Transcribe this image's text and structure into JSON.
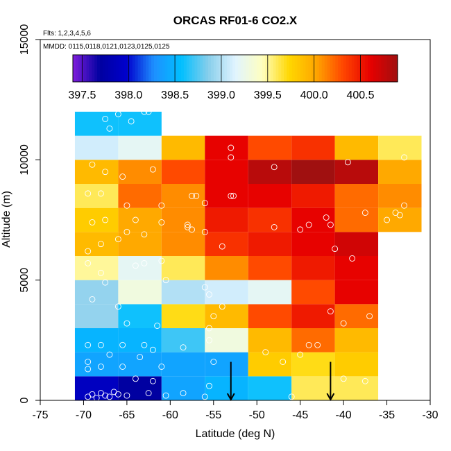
{
  "chart_data": {
    "type": "heatmap",
    "title": "ORCAS RF01-6 CO2.X",
    "notes": [
      "Flts: 1,2,3,4,5,6",
      "MMDD: 0115,0118,0121,0123,0125,0125"
    ],
    "xlabel": "Latitude (deg N)",
    "ylabel": "Altitude (m)",
    "xlim": [
      -75,
      -30
    ],
    "ylim": [
      0,
      15000
    ],
    "xticks": [
      -75,
      -70,
      -65,
      -60,
      -55,
      -50,
      -45,
      -40,
      -35,
      -30
    ],
    "xtick_labels": [
      "-75",
      "-70",
      "-65",
      "-60",
      "-55",
      "-50",
      "-45",
      "-40",
      "-35",
      "-30"
    ],
    "yticks": [
      0,
      5000,
      10000,
      15000
    ],
    "ytick_labels": [
      "0",
      "5000",
      "10000",
      "15000"
    ],
    "lat_edges": [
      -71,
      -66,
      -61,
      -56,
      -51,
      -46,
      -41,
      -36,
      -31
    ],
    "alt_edges": [
      0,
      1000,
      2000,
      3000,
      4000,
      5000,
      6000,
      7000,
      8000,
      9000,
      10000,
      11000,
      12000
    ],
    "grid_values": [
      [
        397.9,
        397.7,
        398.4,
        398.5,
        398.6,
        399.6,
        399.6,
        null
      ],
      [
        398.4,
        398.4,
        398.4,
        398.4,
        399.8,
        399.7,
        399.8,
        null
      ],
      [
        398.5,
        398.5,
        398.7,
        399.3,
        399.9,
        400.2,
        399.9,
        null
      ],
      [
        398.9,
        398.6,
        399.7,
        399.9,
        400.3,
        400.5,
        400.2,
        null
      ],
      [
        398.9,
        399.3,
        399.0,
        399.1,
        399.2,
        400.3,
        400.6,
        null
      ],
      [
        399.5,
        399.2,
        399.6,
        400.1,
        400.3,
        400.5,
        400.6,
        null
      ],
      [
        399.9,
        400.0,
        400.1,
        400.4,
        400.5,
        400.6,
        400.7,
        null
      ],
      [
        399.8,
        400.0,
        400.1,
        400.5,
        400.4,
        400.6,
        400.2,
        400.0
      ],
      [
        399.6,
        400.2,
        400.1,
        400.6,
        400.6,
        400.5,
        400.2,
        400.1
      ],
      [
        399.9,
        400.1,
        400.3,
        400.6,
        400.8,
        400.9,
        400.8,
        400.0
      ],
      [
        399.1,
        399.2,
        399.9,
        400.6,
        400.3,
        400.4,
        399.9,
        399.6
      ],
      [
        398.6,
        398.6,
        null,
        null,
        null,
        null,
        null,
        null
      ]
    ],
    "colorbar": {
      "min": 397.4,
      "max": 400.9,
      "ticks": [
        397.5,
        398.0,
        398.5,
        399.0,
        399.5,
        400.0,
        400.5
      ],
      "tick_labels": [
        "397.5",
        "398.0",
        "398.5",
        "399.0",
        "399.5",
        "400.0",
        "400.5"
      ],
      "colors": [
        "#7f1fdc",
        "#0000a0",
        "#0000cd",
        "#1e90ff",
        "#00bfff",
        "#87ceeb",
        "#e0f4ff",
        "#ffffc0",
        "#ffd700",
        "#ffa500",
        "#ff4500",
        "#e60000",
        "#a01010"
      ]
    },
    "observations": [
      [
        -69.5,
        150
      ],
      [
        -69.0,
        250
      ],
      [
        -68.5,
        100
      ],
      [
        -68.0,
        300
      ],
      [
        -67.5,
        200
      ],
      [
        -67.0,
        150
      ],
      [
        -66.5,
        350
      ],
      [
        -66.0,
        250
      ],
      [
        -65.0,
        200
      ],
      [
        -64.0,
        900
      ],
      [
        -62.5,
        300
      ],
      [
        -62.0,
        800
      ],
      [
        -60.5,
        200
      ],
      [
        -58.5,
        300
      ],
      [
        -56.0,
        150
      ],
      [
        -55.5,
        600
      ],
      [
        -46.0,
        150
      ],
      [
        -40.0,
        900
      ],
      [
        -37.5,
        800
      ],
      [
        -69.5,
        1600
      ],
      [
        -69.5,
        1300
      ],
      [
        -68.0,
        1400
      ],
      [
        -67.0,
        1900
      ],
      [
        -65.5,
        1400
      ],
      [
        -63.5,
        1800
      ],
      [
        -61.0,
        1400
      ],
      [
        -55.0,
        1600
      ],
      [
        -49.0,
        2000
      ],
      [
        -47.0,
        1600
      ],
      [
        -45.0,
        1900
      ],
      [
        -44.0,
        2300
      ],
      [
        -69.5,
        2300
      ],
      [
        -68.0,
        2300
      ],
      [
        -65.5,
        2300
      ],
      [
        -63.0,
        2300
      ],
      [
        -62.0,
        2100
      ],
      [
        -58.5,
        2200
      ],
      [
        -55.5,
        2500
      ],
      [
        -43.0,
        2300
      ],
      [
        -40.0,
        3200
      ],
      [
        -37.0,
        3500
      ],
      [
        -35.5,
        2400
      ],
      [
        -65.0,
        3200
      ],
      [
        -61.5,
        3100
      ],
      [
        -55.5,
        3000
      ],
      [
        -55.0,
        3500
      ],
      [
        -41.5,
        3700
      ],
      [
        -69.0,
        4200
      ],
      [
        -67.5,
        4900
      ],
      [
        -66.0,
        3900
      ],
      [
        -63.0,
        5700
      ],
      [
        -60.5,
        5000
      ],
      [
        -56.0,
        4700
      ],
      [
        -55.5,
        4400
      ],
      [
        -54.0,
        3900
      ],
      [
        -35.5,
        5000
      ],
      [
        -69.5,
        5700
      ],
      [
        -68.0,
        5300
      ],
      [
        -64.0,
        5600
      ],
      [
        -61.0,
        5800
      ],
      [
        -54.0,
        6400
      ],
      [
        -41.0,
        6300
      ],
      [
        -39.0,
        5900
      ],
      [
        -69.5,
        6200
      ],
      [
        -68.0,
        6500
      ],
      [
        -66.0,
        6700
      ],
      [
        -65.0,
        7000
      ],
      [
        -63.0,
        6900
      ],
      [
        -61.0,
        7400
      ],
      [
        -58.0,
        7300
      ],
      [
        -57.5,
        7100
      ],
      [
        -56.0,
        7000
      ],
      [
        -48.0,
        7200
      ],
      [
        -45.0,
        7100
      ],
      [
        -44.0,
        7300
      ],
      [
        -42.0,
        7600
      ],
      [
        -41.5,
        7300
      ],
      [
        -37.5,
        7800
      ],
      [
        -69.0,
        7400
      ],
      [
        -67.5,
        7500
      ],
      [
        -64.0,
        7500
      ],
      [
        -58.0,
        7200
      ],
      [
        -35.0,
        7500
      ],
      [
        -34.0,
        7800
      ],
      [
        -33.5,
        7700
      ],
      [
        -69.5,
        8600
      ],
      [
        -68.0,
        8600
      ],
      [
        -65.0,
        8100
      ],
      [
        -61.0,
        8100
      ],
      [
        -57.5,
        8500
      ],
      [
        -57.0,
        8500
      ],
      [
        -56.0,
        8200
      ],
      [
        -53.0,
        8500
      ],
      [
        -52.7,
        8500
      ],
      [
        -33.0,
        8100
      ],
      [
        -69.0,
        9800
      ],
      [
        -67.5,
        9500
      ],
      [
        -65.5,
        9300
      ],
      [
        -62.0,
        9600
      ],
      [
        -48.0,
        9700
      ],
      [
        -39.5,
        9900
      ],
      [
        -33.0,
        10100
      ],
      [
        -53.0,
        10500
      ],
      [
        -53.0,
        10100
      ],
      [
        -67.5,
        11700
      ],
      [
        -67.0,
        11300
      ],
      [
        -66.0,
        11900
      ],
      [
        -64.5,
        11600
      ],
      [
        -63.0,
        12000
      ],
      [
        -62.5,
        12000
      ]
    ],
    "arrows_at_lat": [
      -53,
      -41.5
    ]
  }
}
